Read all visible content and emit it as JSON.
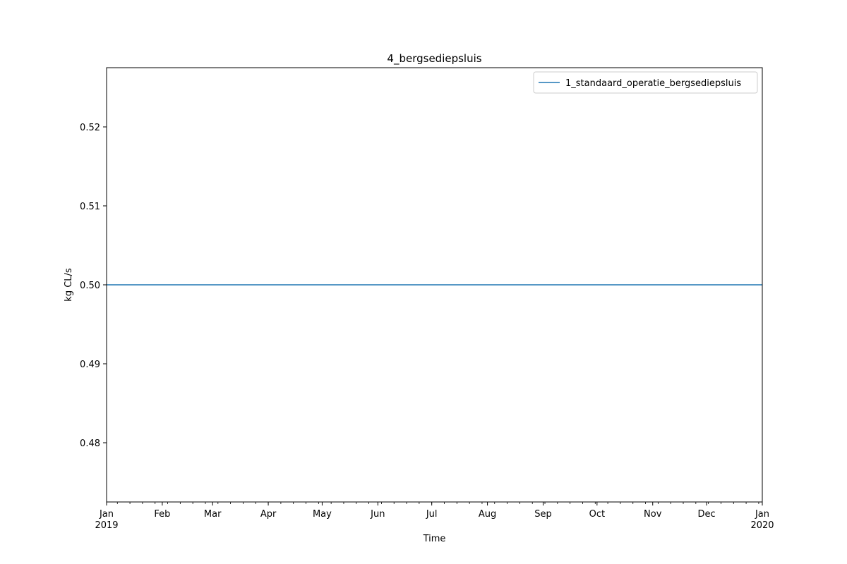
{
  "chart_data": {
    "type": "line",
    "title": "4_bergsediepsluis",
    "xlabel": "Time",
    "ylabel": "kg CL/s",
    "xlim": [
      "2019-01-01",
      "2020-01-01"
    ],
    "ylim": [
      0.4725,
      0.5275
    ],
    "grid": false,
    "legend_position": "top-right",
    "y_ticks": [
      {
        "value": 0.48,
        "label": "0.48"
      },
      {
        "value": 0.49,
        "label": "0.49"
      },
      {
        "value": 0.5,
        "label": "0.50"
      },
      {
        "value": 0.51,
        "label": "0.51"
      },
      {
        "value": 0.52,
        "label": "0.52"
      }
    ],
    "x_ticks": [
      {
        "date": "2019-01-01",
        "label": "Jan",
        "year": "2019"
      },
      {
        "date": "2019-02-01",
        "label": "Feb",
        "year": ""
      },
      {
        "date": "2019-03-01",
        "label": "Mar",
        "year": ""
      },
      {
        "date": "2019-04-01",
        "label": "Apr",
        "year": ""
      },
      {
        "date": "2019-05-01",
        "label": "May",
        "year": ""
      },
      {
        "date": "2019-06-01",
        "label": "Jun",
        "year": ""
      },
      {
        "date": "2019-07-01",
        "label": "Jul",
        "year": ""
      },
      {
        "date": "2019-08-01",
        "label": "Aug",
        "year": ""
      },
      {
        "date": "2019-09-01",
        "label": "Sep",
        "year": ""
      },
      {
        "date": "2019-10-01",
        "label": "Oct",
        "year": ""
      },
      {
        "date": "2019-11-01",
        "label": "Nov",
        "year": ""
      },
      {
        "date": "2019-12-01",
        "label": "Dec",
        "year": ""
      },
      {
        "date": "2020-01-01",
        "label": "Jan",
        "year": "2020"
      }
    ],
    "series": [
      {
        "name": "1_standaard_operatie_bergsediepsluis",
        "color": "#1f77b4",
        "x": [
          "2019-01-01",
          "2020-01-01"
        ],
        "y": [
          0.5,
          0.5
        ]
      }
    ]
  }
}
